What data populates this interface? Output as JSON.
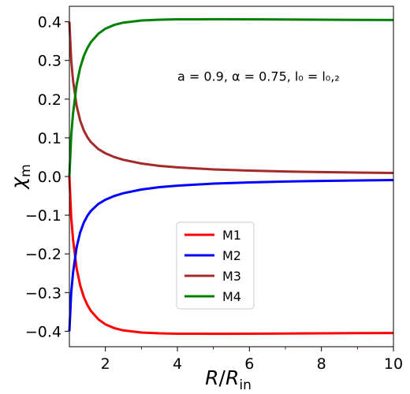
{
  "chart_data": {
    "type": "line",
    "xlabel_main": "R",
    "xlabel_div": "/",
    "xlabel_denom": "R",
    "xlabel_sub": "in",
    "ylabel_main": "χ",
    "ylabel_sub": "m",
    "xlim": [
      1,
      10
    ],
    "ylim": [
      -0.44,
      0.44
    ],
    "xticks": [
      2,
      4,
      6,
      8,
      10
    ],
    "xtick_labels": [
      "2",
      "4",
      "6",
      "8",
      "10"
    ],
    "yticks": [
      -0.4,
      -0.3,
      -0.2,
      -0.1,
      0.0,
      0.1,
      0.2,
      0.3,
      0.4
    ],
    "ytick_labels": [
      "−0.4",
      "−0.3",
      "−0.2",
      "−0.1",
      "0.0",
      "0.1",
      "0.2",
      "0.3",
      "0.4"
    ],
    "grid": false,
    "legend_position": "lower-center",
    "annotation": {
      "text": "a = 0.9,  α = 0.75,  l₀ = l₀,₂",
      "position_data": [
        4.0,
        0.26
      ]
    },
    "series": [
      {
        "name": "M1",
        "color": "#ff0000",
        "x": [
          1.0,
          1.05,
          1.1,
          1.2,
          1.3,
          1.4,
          1.5,
          1.6,
          1.8,
          2.0,
          2.25,
          2.5,
          3.0,
          3.5,
          4.0,
          5.0,
          6.0,
          7.0,
          8.0,
          9.0,
          10.0
        ],
        "y": [
          0.0,
          -0.1041,
          -0.1616,
          -0.2366,
          -0.2816,
          -0.3114,
          -0.332,
          -0.3477,
          -0.3688,
          -0.3822,
          -0.392,
          -0.3978,
          -0.4033,
          -0.4055,
          -0.4063,
          -0.4066,
          -0.4063,
          -0.4058,
          -0.4053,
          -0.4049,
          -0.4045
        ]
      },
      {
        "name": "M2",
        "color": "#0000ff",
        "x": [
          1.0,
          1.05,
          1.1,
          1.2,
          1.3,
          1.4,
          1.5,
          1.6,
          1.8,
          2.0,
          2.25,
          2.5,
          3.0,
          3.5,
          4.0,
          5.0,
          6.0,
          7.0,
          8.0,
          9.0,
          10.0
        ],
        "y": [
          -0.4,
          -0.3016,
          -0.2497,
          -0.1834,
          -0.1445,
          -0.1192,
          -0.1016,
          -0.0887,
          -0.0712,
          -0.06,
          -0.0502,
          -0.0432,
          -0.0336,
          -0.0276,
          -0.0236,
          -0.0184,
          -0.0152,
          -0.013,
          -0.0114,
          -0.0102,
          -0.0092
        ]
      },
      {
        "name": "M3",
        "color": "#a52a2a",
        "x": [
          1.0,
          1.05,
          1.1,
          1.2,
          1.3,
          1.4,
          1.5,
          1.6,
          1.8,
          2.0,
          2.25,
          2.5,
          3.0,
          3.5,
          4.0,
          5.0,
          6.0,
          7.0,
          8.0,
          9.0,
          10.0
        ],
        "y": [
          0.4,
          0.3016,
          0.2497,
          0.1834,
          0.1445,
          0.1192,
          0.1016,
          0.0887,
          0.0712,
          0.06,
          0.0502,
          0.0432,
          0.0336,
          0.0276,
          0.0236,
          0.0184,
          0.0152,
          0.013,
          0.0114,
          0.0102,
          0.0092
        ]
      },
      {
        "name": "M4",
        "color": "#008000",
        "x": [
          1.0,
          1.05,
          1.1,
          1.2,
          1.3,
          1.4,
          1.5,
          1.6,
          1.8,
          2.0,
          2.25,
          2.5,
          3.0,
          3.5,
          4.0,
          5.0,
          6.0,
          7.0,
          8.0,
          9.0,
          10.0
        ],
        "y": [
          0.0,
          0.1041,
          0.1616,
          0.2366,
          0.2816,
          0.3114,
          0.332,
          0.3477,
          0.3688,
          0.3822,
          0.392,
          0.3978,
          0.4033,
          0.4055,
          0.4063,
          0.4066,
          0.4063,
          0.4058,
          0.4053,
          0.4049,
          0.4045
        ]
      }
    ]
  }
}
